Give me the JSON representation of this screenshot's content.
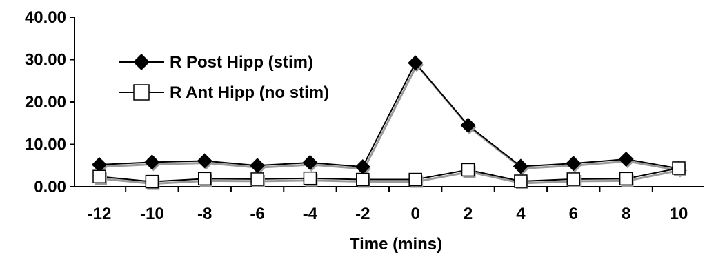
{
  "chart_data": {
    "type": "line",
    "title": "",
    "xlabel": "Time (mins)",
    "ylabel": "",
    "x": [
      -12,
      -10,
      -8,
      -6,
      -4,
      -2,
      0,
      2,
      4,
      6,
      8,
      10
    ],
    "x_tick_labels": [
      "-12",
      "-10",
      "-8",
      "-6",
      "-4",
      "-2",
      "0",
      "2",
      "4",
      "6",
      "8",
      "10"
    ],
    "ylim": [
      0,
      40
    ],
    "y_ticks": [
      0,
      10,
      20,
      30,
      40
    ],
    "y_tick_labels": [
      "0.00",
      "10.00",
      "20.00",
      "30.00",
      "40.00"
    ],
    "grid": false,
    "legend_position": "top-left",
    "series": [
      {
        "name": "R Post Hipp (stim)",
        "marker": "filled-diamond",
        "color": "#000000",
        "values": [
          5.2,
          5.8,
          6.1,
          5.0,
          5.7,
          4.7,
          29.2,
          14.5,
          4.8,
          5.5,
          6.5,
          4.3
        ]
      },
      {
        "name": "R Ant Hipp (no stim)",
        "marker": "open-square",
        "color": "#000000",
        "values": [
          2.4,
          1.2,
          1.9,
          1.8,
          2.0,
          1.7,
          1.7,
          4.0,
          1.3,
          1.8,
          1.9,
          4.4
        ]
      }
    ]
  }
}
